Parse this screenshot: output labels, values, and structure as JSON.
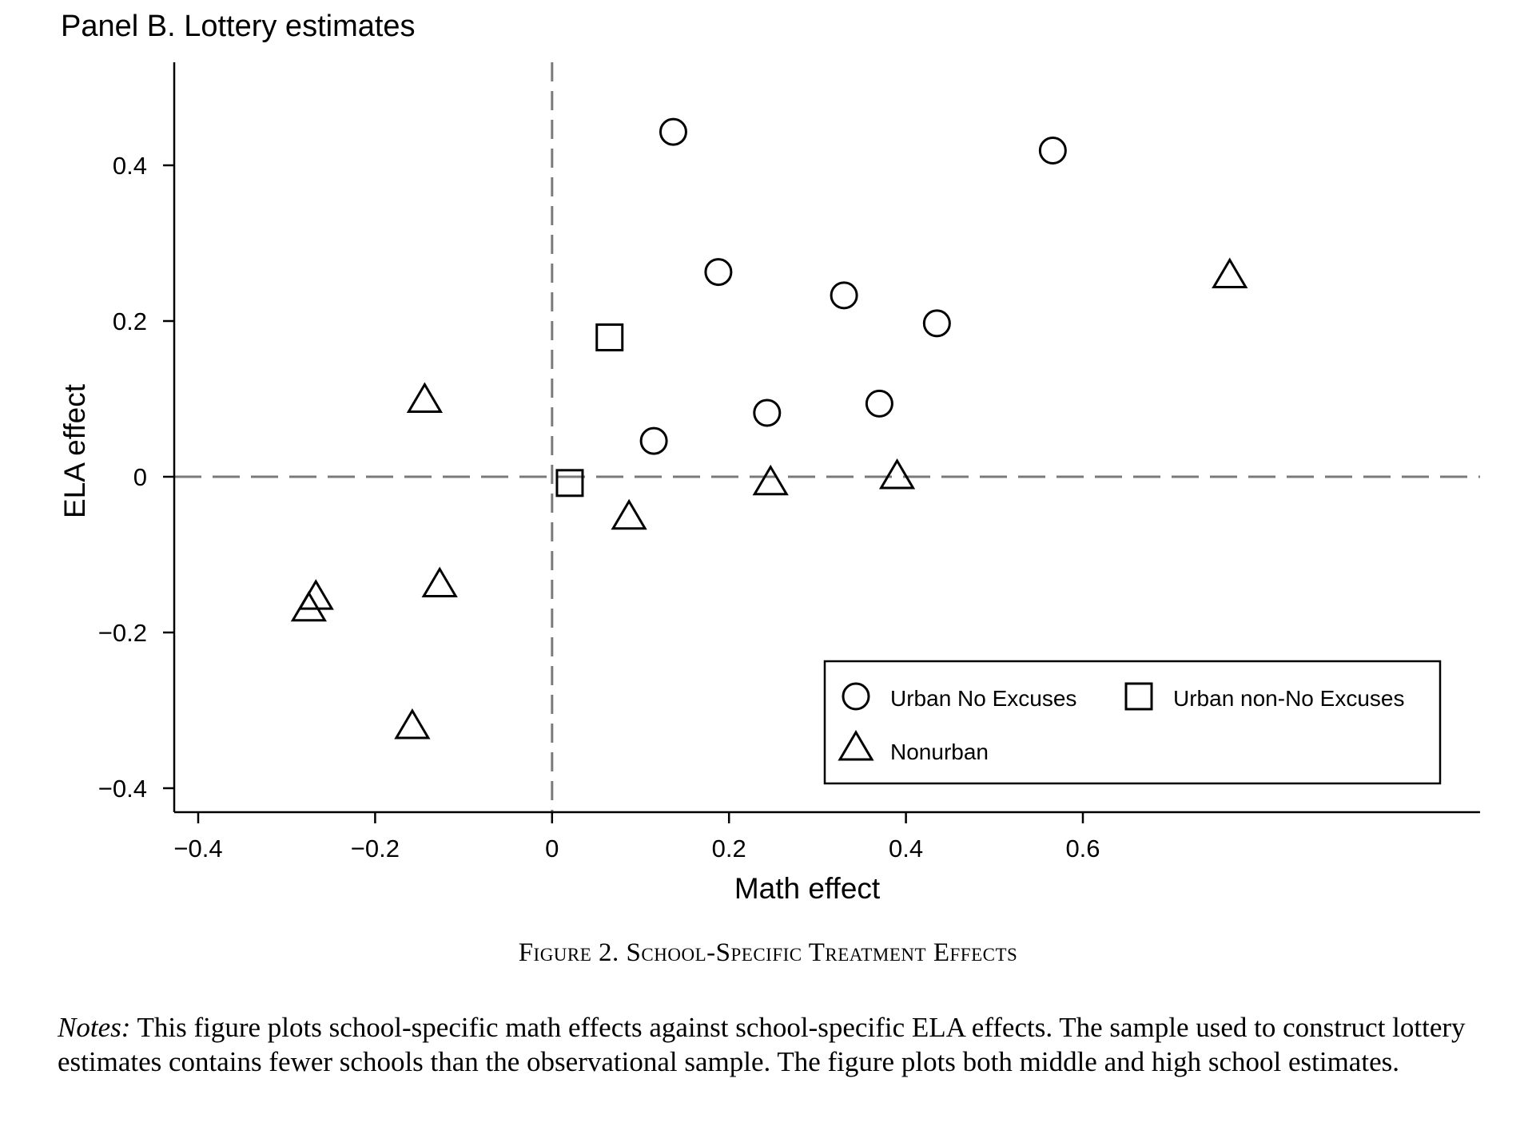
{
  "chart_data": {
    "type": "scatter",
    "title": "Panel B. Lottery estimates",
    "xlabel": "Math effect",
    "ylabel": "ELA effect",
    "xlim": [
      -0.42,
      0.79
    ],
    "ylim": [
      -0.43,
      0.53
    ],
    "xticks": [
      -0.4,
      -0.2,
      0,
      0.2,
      0.4,
      0.6
    ],
    "xtick_labels": [
      "−0.4",
      "−0.2",
      "0",
      "0.2",
      "0.4",
      "0.6"
    ],
    "yticks": [
      -0.4,
      -0.2,
      0,
      0.2,
      0.4
    ],
    "ytick_labels": [
      "−0.4",
      "−0.2",
      "0",
      "0.2",
      "0.4"
    ],
    "reference_lines": {
      "x": 0,
      "y": 0,
      "style": "dashed"
    },
    "grid": false,
    "legend_position": "bottom-right",
    "series": [
      {
        "name": "Urban No Excuses",
        "marker": "circle",
        "points": [
          {
            "x": 0.137,
            "y": 0.443
          },
          {
            "x": 0.566,
            "y": 0.419
          },
          {
            "x": 0.188,
            "y": 0.263
          },
          {
            "x": 0.33,
            "y": 0.233
          },
          {
            "x": 0.435,
            "y": 0.197
          },
          {
            "x": 0.37,
            "y": 0.094
          },
          {
            "x": 0.243,
            "y": 0.082
          },
          {
            "x": 0.115,
            "y": 0.046
          }
        ]
      },
      {
        "name": "Urban non-No Excuses",
        "marker": "square",
        "points": [
          {
            "x": 0.065,
            "y": 0.179
          },
          {
            "x": 0.02,
            "y": -0.008
          }
        ]
      },
      {
        "name": "Nonurban",
        "marker": "triangle",
        "points": [
          {
            "x": 0.766,
            "y": 0.258
          },
          {
            "x": -0.144,
            "y": 0.098
          },
          {
            "x": 0.247,
            "y": -0.008
          },
          {
            "x": 0.39,
            "y": 0.0
          },
          {
            "x": 0.087,
            "y": -0.052
          },
          {
            "x": -0.127,
            "y": -0.139
          },
          {
            "x": -0.267,
            "y": -0.155
          },
          {
            "x": -0.275,
            "y": -0.17
          },
          {
            "x": -0.158,
            "y": -0.321
          }
        ]
      }
    ]
  },
  "caption": "Figure 2. School-Specific Treatment Effects",
  "notes": {
    "label": "Notes:",
    "text": "This figure plots school-specific math effects against school-specific ELA effects. The sample used to construct lottery estimates contains fewer schools than the observational sample.  The figure plots both middle and high school estimates."
  }
}
